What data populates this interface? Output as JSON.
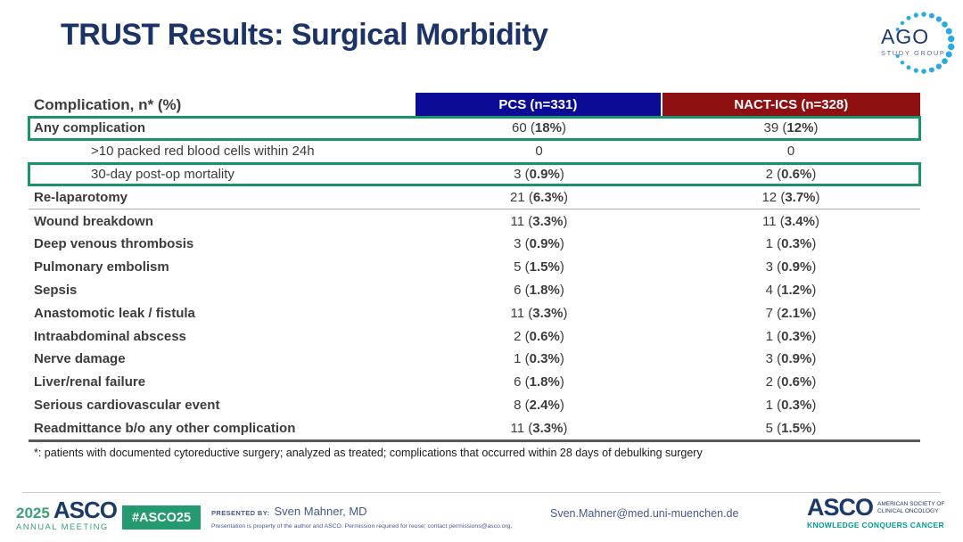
{
  "slide_title": "TRUST Results: Surgical Morbidity",
  "ago_logo": {
    "text": "AGO",
    "subtext": "STUDY GROUP"
  },
  "table": {
    "value_format": "{n} ({pct})",
    "header": {
      "label": "Complication, n* (%)",
      "pcs": "PCS (n=331)",
      "nact": "NACT-ICS (n=328)"
    },
    "rows": [
      {
        "label": "Any complication",
        "pcs": {
          "n": "60",
          "pct": "18%"
        },
        "nact": {
          "n": "39",
          "pct": "12%"
        },
        "bold": true,
        "highlight": true
      },
      {
        "label": ">10 packed red blood cells within 24h",
        "pcs": {
          "n": "0"
        },
        "nact": {
          "n": "0"
        },
        "indent": true
      },
      {
        "label": "30-day post-op mortality",
        "pcs": {
          "n": "3",
          "pct": "0.9%"
        },
        "nact": {
          "n": "2",
          "pct": "0.6%"
        },
        "indent": true,
        "highlight": true
      },
      {
        "label": "Re-laparotomy",
        "pcs": {
          "n": "21",
          "pct": "6.3%"
        },
        "nact": {
          "n": "12",
          "pct": "3.7%"
        },
        "bold": true,
        "divider": true
      },
      {
        "label": "Wound breakdown",
        "pcs": {
          "n": "11",
          "pct": "3.3%"
        },
        "nact": {
          "n": "11",
          "pct": "3.4%"
        },
        "bold": true
      },
      {
        "label": "Deep venous thrombosis",
        "pcs": {
          "n": "3",
          "pct": "0.9%"
        },
        "nact": {
          "n": "1",
          "pct": "0.3%"
        },
        "bold": true
      },
      {
        "label": "Pulmonary embolism",
        "pcs": {
          "n": "5",
          "pct": "1.5%"
        },
        "nact": {
          "n": "3",
          "pct": "0.9%"
        },
        "bold": true
      },
      {
        "label": "Sepsis",
        "pcs": {
          "n": "6",
          "pct": "1.8%"
        },
        "nact": {
          "n": "4",
          "pct": "1.2%"
        },
        "bold": true
      },
      {
        "label": "Anastomotic leak / fistula",
        "pcs": {
          "n": "11",
          "pct": "3.3%"
        },
        "nact": {
          "n": "7",
          "pct": "2.1%"
        },
        "bold": true
      },
      {
        "label": "Intraabdominal abscess",
        "pcs": {
          "n": "2",
          "pct": "0.6%"
        },
        "nact": {
          "n": "1",
          "pct": "0.3%"
        },
        "bold": true
      },
      {
        "label": "Nerve damage",
        "pcs": {
          "n": "1",
          "pct": "0.3%"
        },
        "nact": {
          "n": "3",
          "pct": "0.9%"
        },
        "bold": true
      },
      {
        "label": "Liver/renal failure",
        "pcs": {
          "n": "6",
          "pct": "1.8%"
        },
        "nact": {
          "n": "2",
          "pct": "0.6%"
        },
        "bold": true
      },
      {
        "label": "Serious cardiovascular event",
        "pcs": {
          "n": "8",
          "pct": "2.4%"
        },
        "nact": {
          "n": "1",
          "pct": "0.3%"
        },
        "bold": true
      },
      {
        "label": "Readmittance b/o any other complication",
        "pcs": {
          "n": "11",
          "pct": "3.3%"
        },
        "nact": {
          "n": "5",
          "pct": "1.5%"
        },
        "bold": true
      }
    ]
  },
  "footnote": "*: patients with documented cytoreductive surgery; analyzed as treated; complications that occurred within 28 days of debulking surgery",
  "footer": {
    "meeting_year": "2025",
    "meeting_org": "ASCO",
    "meeting_name": "ANNUAL MEETING",
    "hashtag": "#ASCO25",
    "presented_by_label": "PRESENTED BY:",
    "presenter": "Sven Mahner, MD",
    "permission": "Presentation is property of the author and ASCO. Permission required for reuse; contact permissions@asco.org.",
    "email": "Sven.Mahner@med.uni-muenchen.de",
    "asco_logo": "ASCO",
    "asco_society_line1": "AMERICAN SOCIETY OF",
    "asco_society_line2": "CLINICAL ONCOLOGY",
    "asco_tagline": "KNOWLEDGE CONQUERS CANCER"
  },
  "colors": {
    "title_navy": "#1b3366",
    "pcs_header_bg": "#0b0b96",
    "nact_header_bg": "#8f1010",
    "highlight_border": "#17946c",
    "footer_green": "#259a71",
    "footer_blue": "#44598c",
    "asco_navy": "#1b3a6b",
    "asco_teal": "#009b90",
    "ago_dot_blue": "#2ba9e1"
  }
}
